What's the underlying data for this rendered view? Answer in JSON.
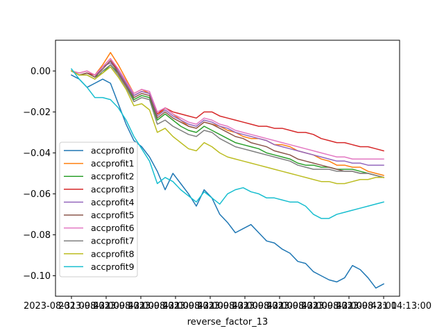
{
  "chart_data": {
    "type": "line",
    "title": "",
    "xlabel": "reverse_factor_13",
    "ylabel": "",
    "ylim": [
      -0.11,
      0.015
    ],
    "grid": false,
    "legend_position": "lower-left",
    "xtick_labels": [
      "2023-08-31 09:42:00",
      "2023-08-31 09:42:00",
      "2023-08-31 09:42:00",
      "2023-08-31 09:42:00",
      "2023-08-31 09:42:00",
      "2023-08-31 09:42:00",
      "2023-08-31 09:42:00",
      "2023-08-31 09:42:00",
      "2023-08-31 09:42:00",
      "2023-08-31 14:13:00"
    ],
    "yticks": [
      0.0,
      -0.02,
      -0.04,
      -0.06,
      -0.08,
      -0.1
    ],
    "ytick_labels": [
      "0.00",
      "−0.02",
      "−0.04",
      "−0.06",
      "−0.08",
      "−0.10"
    ],
    "x": [
      0,
      0.025,
      0.05,
      0.075,
      0.1,
      0.125,
      0.15,
      0.175,
      0.2,
      0.225,
      0.25,
      0.275,
      0.3,
      0.325,
      0.35,
      0.375,
      0.4,
      0.425,
      0.45,
      0.475,
      0.5,
      0.525,
      0.55,
      0.575,
      0.6,
      0.625,
      0.65,
      0.675,
      0.7,
      0.725,
      0.75,
      0.775,
      0.8,
      0.825,
      0.85,
      0.875,
      0.9,
      0.925,
      0.95,
      0.975,
      1.0
    ],
    "series": [
      {
        "name": "accprofit0",
        "color": "#1f77b4",
        "values": [
          -0.002,
          -0.004,
          -0.008,
          -0.006,
          -0.004,
          -0.006,
          -0.016,
          -0.026,
          -0.034,
          -0.037,
          -0.042,
          -0.049,
          -0.058,
          -0.05,
          -0.055,
          -0.06,
          -0.066,
          -0.058,
          -0.062,
          -0.07,
          -0.074,
          -0.079,
          -0.077,
          -0.075,
          -0.079,
          -0.083,
          -0.084,
          -0.087,
          -0.089,
          -0.093,
          -0.094,
          -0.098,
          -0.1,
          -0.102,
          -0.103,
          -0.101,
          -0.095,
          -0.097,
          -0.101,
          -0.106,
          -0.104
        ]
      },
      {
        "name": "accprofit1",
        "color": "#ff7f0e",
        "values": [
          0.0,
          -0.001,
          0.0,
          -0.002,
          0.003,
          0.009,
          0.003,
          -0.004,
          -0.011,
          -0.009,
          -0.011,
          -0.022,
          -0.018,
          -0.021,
          -0.024,
          -0.027,
          -0.028,
          -0.025,
          -0.026,
          -0.027,
          -0.029,
          -0.03,
          -0.032,
          -0.033,
          -0.033,
          -0.034,
          -0.036,
          -0.036,
          -0.037,
          -0.039,
          -0.04,
          -0.041,
          -0.043,
          -0.044,
          -0.046,
          -0.046,
          -0.047,
          -0.047,
          -0.049,
          -0.05,
          -0.051
        ]
      },
      {
        "name": "accprofit2",
        "color": "#2ca02c",
        "values": [
          0.0,
          -0.002,
          -0.001,
          -0.003,
          -0.001,
          0.003,
          -0.001,
          -0.007,
          -0.014,
          -0.012,
          -0.013,
          -0.024,
          -0.021,
          -0.024,
          -0.027,
          -0.029,
          -0.03,
          -0.027,
          -0.029,
          -0.031,
          -0.033,
          -0.035,
          -0.036,
          -0.037,
          -0.038,
          -0.04,
          -0.041,
          -0.042,
          -0.043,
          -0.045,
          -0.046,
          -0.046,
          -0.047,
          -0.047,
          -0.048,
          -0.048,
          -0.048,
          -0.049,
          -0.05,
          -0.051,
          -0.052
        ]
      },
      {
        "name": "accprofit3",
        "color": "#d62728",
        "values": [
          0.0,
          -0.002,
          -0.001,
          -0.002,
          0.002,
          0.006,
          0.0,
          -0.006,
          -0.012,
          -0.01,
          -0.011,
          -0.021,
          -0.018,
          -0.02,
          -0.021,
          -0.022,
          -0.023,
          -0.02,
          -0.02,
          -0.022,
          -0.023,
          -0.024,
          -0.025,
          -0.026,
          -0.027,
          -0.027,
          -0.028,
          -0.028,
          -0.029,
          -0.03,
          -0.03,
          -0.031,
          -0.033,
          -0.034,
          -0.035,
          -0.035,
          -0.036,
          -0.037,
          -0.037,
          -0.038,
          -0.039
        ]
      },
      {
        "name": "accprofit4",
        "color": "#9467bd",
        "values": [
          0.0,
          -0.002,
          -0.001,
          -0.003,
          0.002,
          0.004,
          0.0,
          -0.006,
          -0.012,
          -0.01,
          -0.011,
          -0.022,
          -0.019,
          -0.022,
          -0.024,
          -0.026,
          -0.027,
          -0.024,
          -0.025,
          -0.027,
          -0.028,
          -0.03,
          -0.031,
          -0.032,
          -0.033,
          -0.034,
          -0.036,
          -0.037,
          -0.038,
          -0.039,
          -0.04,
          -0.041,
          -0.042,
          -0.043,
          -0.044,
          -0.044,
          -0.045,
          -0.045,
          -0.046,
          -0.046,
          -0.046
        ]
      },
      {
        "name": "accprofit5",
        "color": "#8c564b",
        "values": [
          0.0,
          -0.002,
          -0.001,
          -0.003,
          0.001,
          0.005,
          -0.001,
          -0.007,
          -0.013,
          -0.011,
          -0.012,
          -0.023,
          -0.02,
          -0.023,
          -0.025,
          -0.027,
          -0.028,
          -0.025,
          -0.026,
          -0.028,
          -0.03,
          -0.032,
          -0.033,
          -0.035,
          -0.036,
          -0.037,
          -0.039,
          -0.04,
          -0.041,
          -0.043,
          -0.044,
          -0.045,
          -0.046,
          -0.047,
          -0.048,
          -0.049,
          -0.049,
          -0.05,
          -0.05,
          -0.051,
          -0.052
        ]
      },
      {
        "name": "accprofit6",
        "color": "#e377c2",
        "values": [
          0.0,
          -0.001,
          0.0,
          -0.002,
          0.002,
          0.006,
          0.001,
          -0.005,
          -0.011,
          -0.009,
          -0.01,
          -0.02,
          -0.018,
          -0.021,
          -0.023,
          -0.025,
          -0.026,
          -0.023,
          -0.024,
          -0.026,
          -0.027,
          -0.029,
          -0.03,
          -0.031,
          -0.032,
          -0.033,
          -0.034,
          -0.035,
          -0.036,
          -0.037,
          -0.038,
          -0.039,
          -0.04,
          -0.041,
          -0.042,
          -0.042,
          -0.043,
          -0.043,
          -0.043,
          -0.043,
          -0.043
        ]
      },
      {
        "name": "accprofit7",
        "color": "#7f7f7f",
        "values": [
          0.0,
          -0.002,
          -0.002,
          -0.004,
          0.0,
          0.003,
          -0.002,
          -0.008,
          -0.015,
          -0.013,
          -0.014,
          -0.026,
          -0.024,
          -0.027,
          -0.029,
          -0.031,
          -0.032,
          -0.029,
          -0.03,
          -0.033,
          -0.035,
          -0.037,
          -0.038,
          -0.039,
          -0.04,
          -0.041,
          -0.042,
          -0.043,
          -0.044,
          -0.046,
          -0.047,
          -0.048,
          -0.048,
          -0.048,
          -0.049,
          -0.049,
          -0.049,
          -0.05,
          -0.05,
          -0.051,
          -0.052
        ]
      },
      {
        "name": "accprofit8",
        "color": "#bcbd22",
        "values": [
          0.0,
          -0.002,
          -0.002,
          -0.004,
          -0.001,
          0.002,
          -0.003,
          -0.009,
          -0.017,
          -0.016,
          -0.019,
          -0.03,
          -0.028,
          -0.032,
          -0.035,
          -0.038,
          -0.039,
          -0.035,
          -0.037,
          -0.04,
          -0.042,
          -0.043,
          -0.044,
          -0.045,
          -0.046,
          -0.047,
          -0.048,
          -0.049,
          -0.05,
          -0.051,
          -0.052,
          -0.053,
          -0.054,
          -0.054,
          -0.055,
          -0.055,
          -0.054,
          -0.053,
          -0.053,
          -0.052,
          -0.052
        ]
      },
      {
        "name": "accprofit9",
        "color": "#17becf",
        "values": [
          0.001,
          -0.004,
          -0.008,
          -0.013,
          -0.013,
          -0.014,
          -0.018,
          -0.024,
          -0.032,
          -0.038,
          -0.044,
          -0.055,
          -0.052,
          -0.054,
          -0.058,
          -0.061,
          -0.064,
          -0.059,
          -0.062,
          -0.065,
          -0.06,
          -0.058,
          -0.057,
          -0.059,
          -0.06,
          -0.062,
          -0.062,
          -0.063,
          -0.064,
          -0.064,
          -0.066,
          -0.07,
          -0.072,
          -0.072,
          -0.07,
          -0.069,
          -0.068,
          -0.067,
          -0.066,
          -0.065,
          -0.064
        ]
      }
    ]
  }
}
